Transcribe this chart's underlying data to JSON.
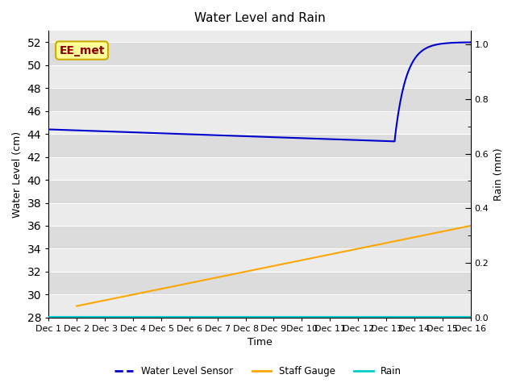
{
  "title": "Water Level and Rain",
  "xlabel": "Time",
  "ylabel_left": "Water Level (cm)",
  "ylabel_right": "Rain (mm)",
  "annotation_text": "EE_met",
  "annotation_color": "#8B0000",
  "annotation_bg": "#FFFF99",
  "annotation_border": "#CCAA00",
  "xlim": [
    0,
    15
  ],
  "ylim_left": [
    28,
    53
  ],
  "ylim_right": [
    0.0,
    1.05
  ],
  "yticks_left": [
    28,
    30,
    32,
    34,
    36,
    38,
    40,
    42,
    44,
    46,
    48,
    50,
    52
  ],
  "yticks_right": [
    0.0,
    0.2,
    0.4,
    0.6,
    0.8,
    1.0
  ],
  "xtick_labels": [
    "Dec 1",
    "Dec 2",
    "Dec 3",
    "Dec 4",
    "Dec 5",
    "Dec 6",
    "Dec 7",
    "Dec 8",
    "Dec 9",
    "Dec 10",
    "Dec 11",
    "Dec 12",
    "Dec 13",
    "Dec 14",
    "Dec 15",
    "Dec 16"
  ],
  "water_level_color": "#0000CC",
  "staff_gauge_color": "#FFA500",
  "rain_color": "#00CCCC",
  "bg_light": "#EBEBEB",
  "bg_dark": "#DCDCDC",
  "legend_labels": [
    "Water Level Sensor",
    "Staff Gauge",
    "Rain"
  ],
  "legend_colors": [
    "#0000CC",
    "#FFA500",
    "#00CCCC"
  ],
  "grid_color": "#FFFFFF",
  "title_fontsize": 11,
  "axis_fontsize": 9,
  "tick_fontsize": 8
}
